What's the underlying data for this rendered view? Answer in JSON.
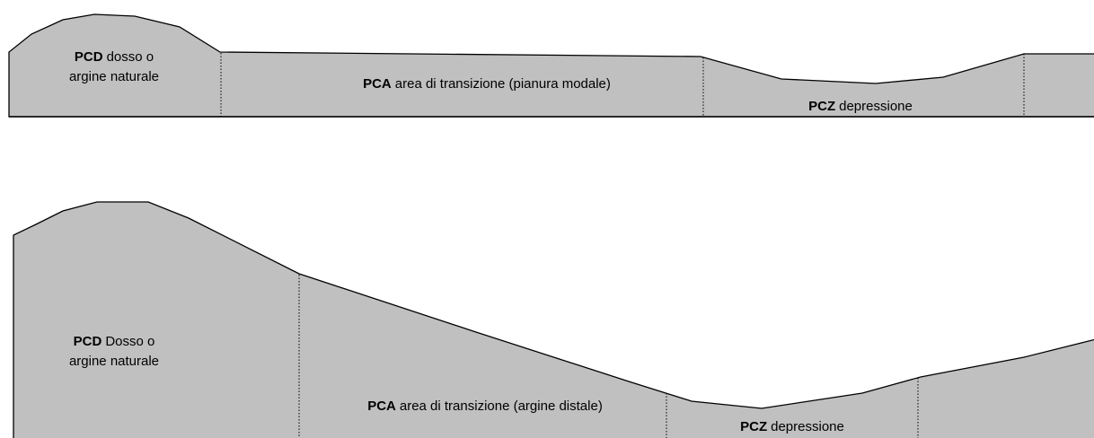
{
  "profiles": [
    {
      "labels": [
        {
          "code": "PCD",
          "rest": "dosso o",
          "line2": "argine naturale"
        },
        {
          "code": "PCA",
          "rest": "area di transizione (pianura modale)"
        },
        {
          "code": "PCZ",
          "rest": "depressione"
        }
      ]
    },
    {
      "labels": [
        {
          "code": "PCD",
          "rest": "Dosso o",
          "line2": "argine naturale"
        },
        {
          "code": "PCA",
          "rest": "area di transizione (argine distale)"
        },
        {
          "code": "PCZ",
          "rest": "depressione"
        }
      ]
    }
  ]
}
